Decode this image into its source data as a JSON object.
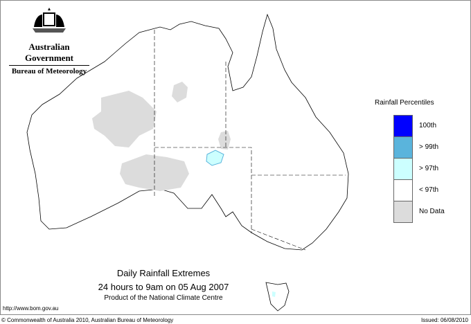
{
  "logo": {
    "government": "Australian Government",
    "bureau": "Bureau of Meteorology"
  },
  "legend": {
    "title": "Rainfall Percentiles",
    "items": [
      {
        "label": "100th",
        "color": "#0000ff"
      },
      {
        "label": "> 99th",
        "color": "#5ab4dc"
      },
      {
        "label": "> 97th",
        "color": "#ccffff"
      },
      {
        "label": "< 97th",
        "color": "#ffffff"
      },
      {
        "label": "No Data",
        "color": "#dcdcdc"
      }
    ]
  },
  "caption": {
    "title": "Daily Rainfall Extremes",
    "subtitle": "24 hours to 9am on 05 Aug 2007",
    "product": "Product of the National Climate Centre"
  },
  "url": "http://www.bom.gov.au",
  "footer": {
    "copyright": "© Commonwealth of Australia 2010, Australian Bureau of Meteorology",
    "issued": "Issued: 06/08/2010"
  }
}
